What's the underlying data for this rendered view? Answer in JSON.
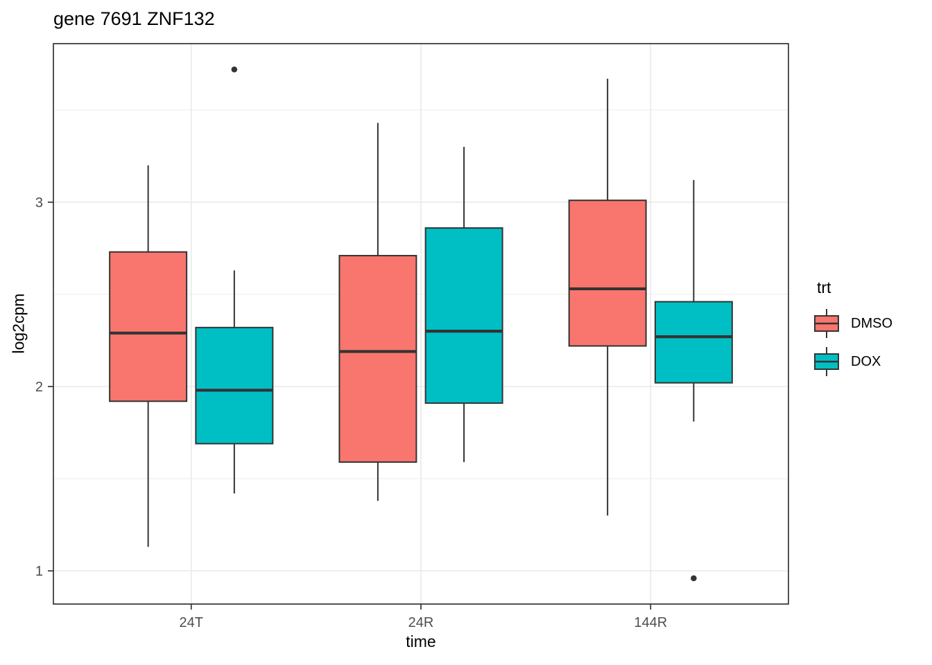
{
  "title": "gene 7691 ZNF132",
  "axes": {
    "x_label": "time",
    "y_label": "log2cpm"
  },
  "legend": {
    "title": "trt",
    "entries": [
      {
        "label": "DMSO",
        "color": "#F8766D"
      },
      {
        "label": "DOX",
        "color": "#00BFC4"
      }
    ]
  },
  "colors": {
    "dmso_fill": "#F8766D",
    "dox_fill": "#00BFC4",
    "box_stroke": "#333333",
    "grid": "#ebebeb",
    "panel_border": "#333333",
    "tick_label": "#4d4d4d"
  },
  "chart_data": {
    "type": "boxplot",
    "title": "gene 7691 ZNF132",
    "xlabel": "time",
    "ylabel": "log2cpm",
    "categories": [
      "24T",
      "24R",
      "144R"
    ],
    "ylim": [
      0.82,
      3.86
    ],
    "yticks": [
      1,
      2,
      3
    ],
    "yticks_minor": [
      1.5,
      2.5,
      3.5
    ],
    "grid": true,
    "legend_title": "trt",
    "legend_position": "right",
    "series": [
      {
        "name": "DMSO",
        "color": "#F8766D",
        "boxes": [
          {
            "category": "24T",
            "whisker_low": 1.13,
            "q1": 1.92,
            "median": 2.29,
            "q3": 2.73,
            "whisker_high": 3.2,
            "outliers": []
          },
          {
            "category": "24R",
            "whisker_low": 1.38,
            "q1": 1.59,
            "median": 2.19,
            "q3": 2.71,
            "whisker_high": 3.43,
            "outliers": []
          },
          {
            "category": "144R",
            "whisker_low": 1.3,
            "q1": 2.22,
            "median": 2.53,
            "q3": 3.01,
            "whisker_high": 3.67,
            "outliers": []
          }
        ]
      },
      {
        "name": "DOX",
        "color": "#00BFC4",
        "boxes": [
          {
            "category": "24T",
            "whisker_low": 1.42,
            "q1": 1.69,
            "median": 1.98,
            "q3": 2.32,
            "whisker_high": 2.63,
            "outliers": [
              3.72
            ]
          },
          {
            "category": "24R",
            "whisker_low": 1.59,
            "q1": 1.91,
            "median": 2.3,
            "q3": 2.86,
            "whisker_high": 3.3,
            "outliers": []
          },
          {
            "category": "144R",
            "whisker_low": 1.81,
            "q1": 2.02,
            "median": 2.27,
            "q3": 2.46,
            "whisker_high": 3.12,
            "outliers": [
              0.96
            ]
          }
        ]
      }
    ]
  }
}
